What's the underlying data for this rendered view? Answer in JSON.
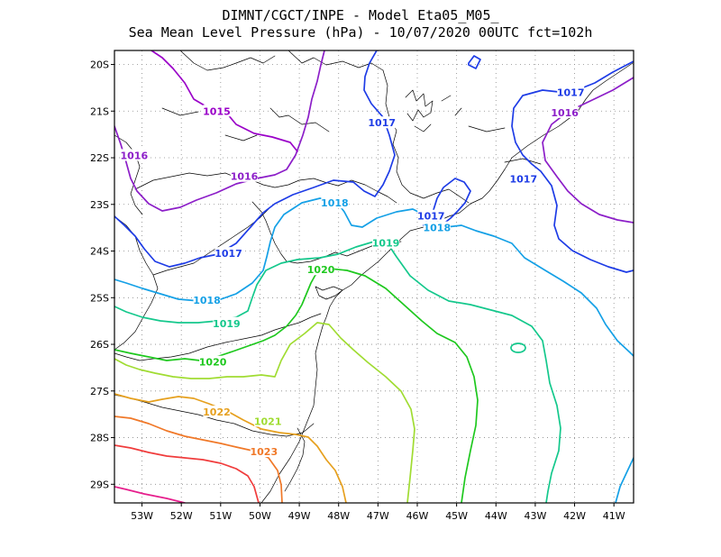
{
  "title": {
    "line1": "DIMNT/CGCT/INPE -  Model Eta05_M05_",
    "line2": "Sea Mean Level Pressure (hPa) - 10/07/2020 00UTC fct=102h"
  },
  "map": {
    "lon_range": [
      -53.7,
      -40.5
    ],
    "lat_range": [
      -29.4,
      -19.7
    ],
    "lat_ticks": [
      {
        "value": -20,
        "label": "20S"
      },
      {
        "value": -21,
        "label": "21S"
      },
      {
        "value": -22,
        "label": "22S"
      },
      {
        "value": -23,
        "label": "23S"
      },
      {
        "value": -24,
        "label": "24S"
      },
      {
        "value": -25,
        "label": "25S"
      },
      {
        "value": -26,
        "label": "26S"
      },
      {
        "value": -27,
        "label": "27S"
      },
      {
        "value": -28,
        "label": "28S"
      },
      {
        "value": -29,
        "label": "29S"
      }
    ],
    "lon_ticks": [
      {
        "value": -53,
        "label": "53W"
      },
      {
        "value": -52,
        "label": "52W"
      },
      {
        "value": -51,
        "label": "51W"
      },
      {
        "value": -50,
        "label": "50W"
      },
      {
        "value": -49,
        "label": "49W"
      },
      {
        "value": -48,
        "label": "48W"
      },
      {
        "value": -47,
        "label": "47W"
      },
      {
        "value": -46,
        "label": "46W"
      },
      {
        "value": -45,
        "label": "45W"
      },
      {
        "value": -44,
        "label": "44W"
      },
      {
        "value": -43,
        "label": "43W"
      },
      {
        "value": -42,
        "label": "42W"
      },
      {
        "value": -41,
        "label": "41W"
      }
    ],
    "grid": "dotted"
  },
  "isobars": [
    {
      "level": "1015",
      "color": "#9a00c8",
      "labels": [
        [
          -51.1,
          -21.0
        ]
      ]
    },
    {
      "level": "1016",
      "color": "#8c1ec8",
      "labels": [
        [
          -53.2,
          -21.95
        ],
        [
          -50.4,
          -22.4
        ],
        [
          -42.25,
          -21.03
        ]
      ]
    },
    {
      "level": "1017",
      "color": "#1e3ce6",
      "labels": [
        [
          -50.8,
          -24.05
        ],
        [
          -46.9,
          -21.25
        ],
        [
          -42.1,
          -20.6
        ],
        [
          -43.3,
          -22.45
        ],
        [
          -45.65,
          -23.25
        ]
      ]
    },
    {
      "level": "1018",
      "color": "#14a0e6",
      "labels": [
        [
          -51.35,
          -25.05
        ],
        [
          -48.1,
          -22.97
        ],
        [
          -45.5,
          -23.5
        ]
      ]
    },
    {
      "level": "1019",
      "color": "#14c88c",
      "labels": [
        [
          -50.85,
          -25.55
        ],
        [
          -46.8,
          -23.83
        ]
      ]
    },
    {
      "level": "1020",
      "color": "#1ec81e",
      "labels": [
        [
          -51.2,
          -26.38
        ],
        [
          -48.45,
          -24.4
        ]
      ]
    },
    {
      "level": "1021",
      "color": "#a0dc32",
      "labels": [
        [
          -49.8,
          -27.65
        ]
      ]
    },
    {
      "level": "1022",
      "color": "#e6a01e",
      "labels": [
        [
          -51.1,
          -27.45
        ]
      ]
    },
    {
      "level": "1023",
      "color": "#f07828",
      "labels": [
        [
          -49.9,
          -28.3
        ]
      ]
    },
    {
      "level": "1024",
      "color": "#f03c3c",
      "labels": []
    },
    {
      "level": "1025",
      "color": "#e61e8c",
      "labels": []
    }
  ]
}
